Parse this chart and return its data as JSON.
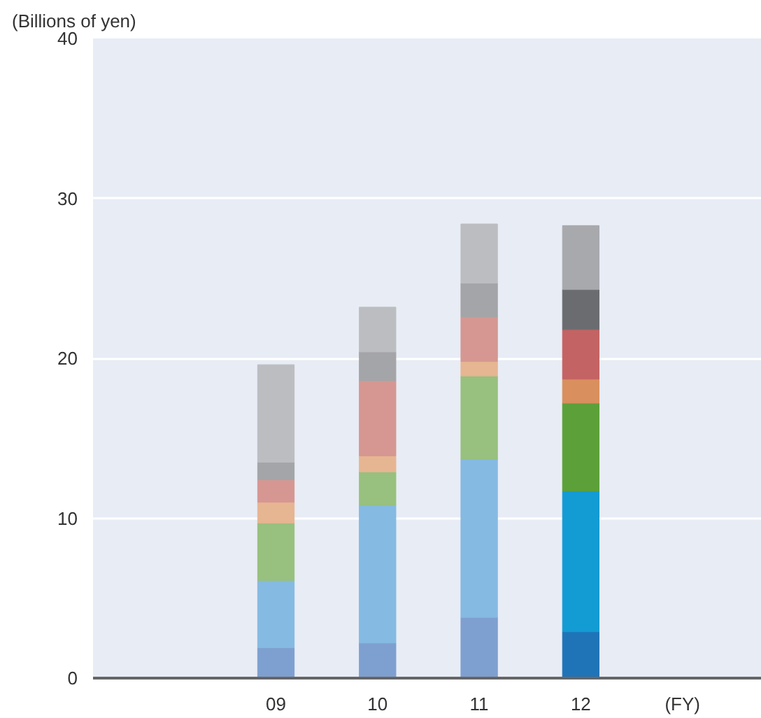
{
  "chart_data": {
    "type": "bar",
    "stacked": true,
    "ylabel": "(Billions of yen)",
    "xlabel": "(FY)",
    "categories": [
      null,
      "09",
      "10",
      "11",
      "12"
    ],
    "ylim": [
      0,
      40
    ],
    "yticks": [
      0,
      10,
      20,
      30,
      40
    ],
    "grid": "y",
    "series": [
      {
        "colors": [
          "#7ea0d0",
          "#7ea0d0",
          "#7ea0d0",
          "#7ea0d0",
          "#1f74b8"
        ],
        "values": [
          null,
          1.9,
          2.2,
          3.8,
          2.9
        ]
      },
      {
        "colors": [
          "#85bae2",
          "#85bae2",
          "#85bae2",
          "#85bae2",
          "#139bd4"
        ],
        "values": [
          null,
          4.2,
          8.6,
          9.9,
          8.8
        ]
      },
      {
        "colors": [
          "#98c07e",
          "#98c07e",
          "#98c07e",
          "#98c07e",
          "#5ca03a"
        ],
        "values": [
          null,
          3.6,
          2.1,
          5.2,
          5.5
        ]
      },
      {
        "colors": [
          "#e6b592",
          "#e6b592",
          "#e6b592",
          "#e6b592",
          "#d98f5e"
        ],
        "values": [
          null,
          1.3,
          1.0,
          0.9,
          1.5
        ]
      },
      {
        "colors": [
          "#d69792",
          "#d69792",
          "#d69792",
          "#d69792",
          "#c46363"
        ],
        "values": [
          null,
          1.4,
          4.7,
          2.8,
          3.1
        ]
      },
      {
        "colors": [
          "#a4a5a8",
          "#a4a5a8",
          "#a4a5a8",
          "#a4a5a8",
          "#6b6c70"
        ],
        "values": [
          null,
          1.1,
          1.8,
          2.1,
          2.5
        ]
      },
      {
        "colors": [
          "#bcbdc1",
          "#bcbdc1",
          "#bcbdc1",
          "#bcbdc1",
          "#a8a9ad"
        ],
        "values": [
          null,
          6.1,
          2.8,
          3.7,
          4.0
        ]
      }
    ]
  }
}
